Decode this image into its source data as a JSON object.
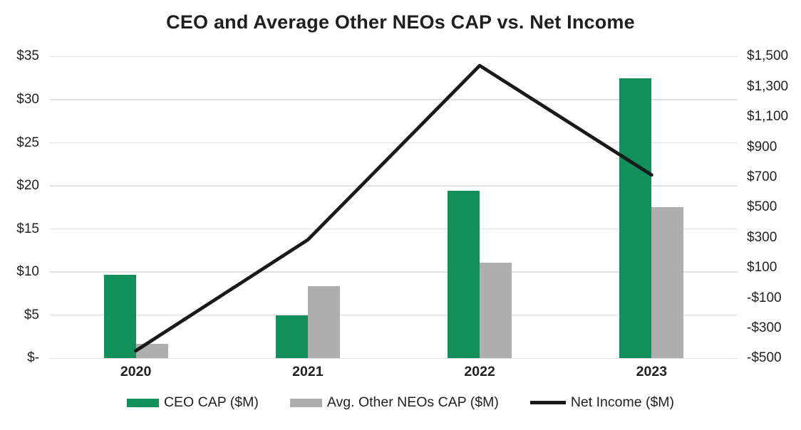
{
  "chart_data": {
    "type": "combo",
    "title": "CEO and Average Other NEOs CAP vs. Net Income",
    "categories": [
      "2020",
      "2021",
      "2022",
      "2023"
    ],
    "series": [
      {
        "name": "CEO CAP ($M)",
        "type": "bar",
        "axis": "left",
        "color": "#11905a",
        "values": [
          9.7,
          5.0,
          19.4,
          32.5
        ]
      },
      {
        "name": "Avg. Other NEOs CAP ($M)",
        "type": "bar",
        "axis": "left",
        "color": "#aeaeae",
        "values": [
          1.7,
          8.4,
          11.1,
          17.5
        ]
      },
      {
        "name": "Net Income ($M)",
        "type": "line",
        "axis": "right",
        "color": "#1a1a1a",
        "values": [
          -450,
          285,
          1440,
          715
        ]
      }
    ],
    "left_axis": {
      "min": 0,
      "max": 35,
      "step": 5,
      "tick_labels_bottom_to_top": [
        "$-",
        "$5",
        "$10",
        "$15",
        "$20",
        "$25",
        "$30",
        "$35"
      ]
    },
    "right_axis": {
      "min": -500,
      "max": 1500,
      "step": 200,
      "tick_labels_bottom_to_top": [
        "-$500",
        "-$300",
        "-$100",
        "$100",
        "$300",
        "$500",
        "$700",
        "$900",
        "$1,100",
        "$1,300",
        "$1,500"
      ]
    },
    "grid": true,
    "legend_position": "bottom",
    "colors": {
      "ceo_cap": "#11905a",
      "avg_other_neos_cap": "#aeaeae",
      "net_income_line": "#1a1a1a",
      "gridline": "#e0e0e0",
      "text": "#212121",
      "background": "#ffffff"
    }
  }
}
